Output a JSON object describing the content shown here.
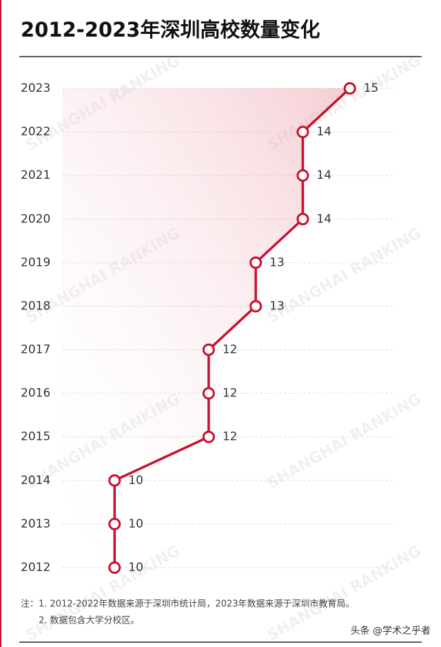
{
  "chart_data": {
    "type": "line",
    "orientation": "horizontal",
    "title": "2012-2023年深圳高校数量变化",
    "categories": [
      "2012",
      "2013",
      "2014",
      "2015",
      "2016",
      "2017",
      "2018",
      "2019",
      "2020",
      "2021",
      "2022",
      "2023"
    ],
    "values": [
      10,
      10,
      10,
      12,
      12,
      12,
      13,
      13,
      14,
      14,
      14,
      15
    ],
    "xlim": [
      9,
      16
    ],
    "color": "#c8102e",
    "grid": true,
    "notes": [
      "注：1. 2012-2022年数据来源于深圳市统计局，2023年数据来源于深圳市教育局。",
      "2. 数据包含大学分校区。"
    ],
    "watermark": "SHANGHAI RANKING",
    "credit": "头条 @学术之乎者"
  }
}
